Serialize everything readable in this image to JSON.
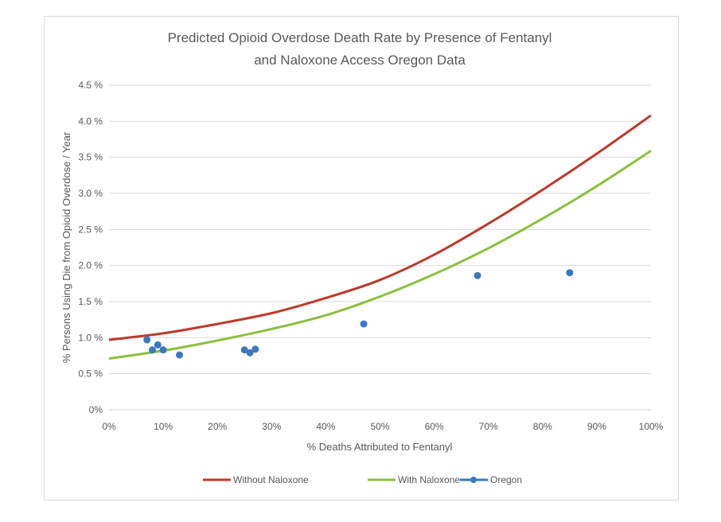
{
  "chart_data": {
    "type": "line",
    "title": "Predicted Opioid Overdose Death Rate by Presence of Fentanyl and Naloxone Access Oregon Data",
    "title_lines": [
      "Predicted Opioid Overdose Death Rate by Presence of Fentanyl",
      "and Naloxone Access Oregon Data"
    ],
    "xlabel": "% Deaths Attributed to Fentanyl",
    "ylabel": "% Persons Using Die from Opioid Overdose / Year",
    "xlim": [
      0,
      100
    ],
    "ylim": [
      0,
      4.5
    ],
    "x_ticks": [
      "0%",
      "10%",
      "20%",
      "30%",
      "40%",
      "50%",
      "60%",
      "70%",
      "80%",
      "90%",
      "100%"
    ],
    "y_ticks": [
      "0%",
      "0.5 %",
      "1.0 %",
      "1.5 %",
      "2.0 %",
      "2.5 %",
      "3.0 %",
      "3.5 %",
      "4.0 %",
      "4.5 %"
    ],
    "grid": "horizontal",
    "legend": "bottom",
    "series": [
      {
        "name": "Without Naloxone",
        "color": "#c0392b",
        "kind": "line",
        "x": [
          0,
          10,
          20,
          30,
          40,
          50,
          60,
          70,
          80,
          90,
          100
        ],
        "y": [
          0.97,
          1.06,
          1.19,
          1.34,
          1.55,
          1.8,
          2.15,
          2.58,
          3.05,
          3.55,
          4.08
        ]
      },
      {
        "name": "With Naloxone",
        "color": "#8cbf3f",
        "kind": "line",
        "x": [
          0,
          10,
          20,
          30,
          40,
          50,
          60,
          70,
          80,
          90,
          100
        ],
        "y": [
          0.71,
          0.82,
          0.96,
          1.12,
          1.31,
          1.57,
          1.88,
          2.24,
          2.65,
          3.1,
          3.59
        ]
      },
      {
        "name": "Oregon",
        "color": "#3b78c2",
        "kind": "scatter",
        "x": [
          7,
          8,
          9,
          10,
          13,
          25,
          26,
          27,
          47,
          68,
          85
        ],
        "y": [
          0.97,
          0.83,
          0.9,
          0.83,
          0.76,
          0.83,
          0.79,
          0.84,
          1.19,
          1.86,
          1.9
        ]
      }
    ]
  }
}
